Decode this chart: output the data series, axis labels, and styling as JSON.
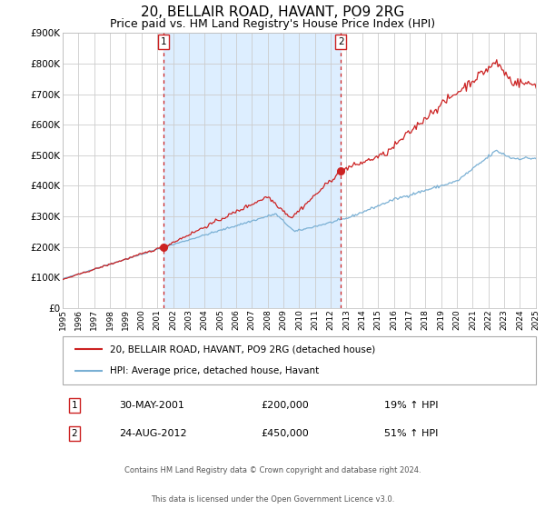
{
  "title": "20, BELLAIR ROAD, HAVANT, PO9 2RG",
  "subtitle": "Price paid vs. HM Land Registry's House Price Index (HPI)",
  "title_fontsize": 11,
  "subtitle_fontsize": 9,
  "background_color": "#ffffff",
  "plot_bg_color": "#ffffff",
  "shade_color": "#ddeeff",
  "grid_color": "#cccccc",
  "hpi_color": "#7ab0d4",
  "price_color": "#cc2222",
  "marker_color": "#cc2222",
  "vline_color": "#cc2222",
  "sale1_date": 2001.41,
  "sale1_price": 200000,
  "sale2_date": 2012.65,
  "sale2_price": 450000,
  "ylim_min": 0,
  "ylim_max": 900000,
  "xlim_min": 1995,
  "xlim_max": 2025,
  "ytick_step": 100000,
  "legend_price_label": "20, BELLAIR ROAD, HAVANT, PO9 2RG (detached house)",
  "legend_hpi_label": "HPI: Average price, detached house, Havant",
  "note1_num": "1",
  "note1_date": "30-MAY-2001",
  "note1_price": "£200,000",
  "note1_pct": "19% ↑ HPI",
  "note2_num": "2",
  "note2_date": "24-AUG-2012",
  "note2_price": "£450,000",
  "note2_pct": "51% ↑ HPI",
  "footnote_line1": "Contains HM Land Registry data © Crown copyright and database right 2024.",
  "footnote_line2": "This data is licensed under the Open Government Licence v3.0."
}
